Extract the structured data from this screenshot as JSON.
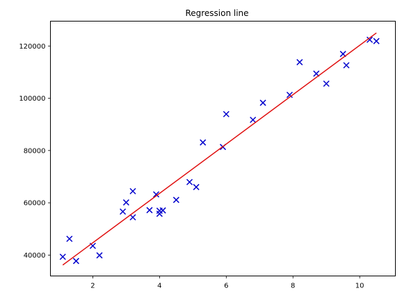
{
  "chart_data": {
    "type": "scatter",
    "title": "Regression line",
    "xlabel": "",
    "ylabel": "",
    "xlim": [
      0.73,
      11.07
    ],
    "ylim": [
      32000,
      129500
    ],
    "xticks": [
      2,
      4,
      6,
      8,
      10
    ],
    "yticks": [
      40000,
      60000,
      80000,
      100000,
      120000
    ],
    "grid": false,
    "series": [
      {
        "kind": "scatter",
        "marker": "x",
        "color": "#0000cc",
        "x": [
          1.1,
          1.3,
          1.5,
          2.0,
          2.2,
          2.9,
          3.0,
          3.2,
          3.2,
          3.7,
          3.9,
          4.0,
          4.0,
          4.1,
          4.5,
          4.9,
          5.1,
          5.3,
          5.9,
          6.0,
          6.8,
          7.1,
          7.9,
          8.2,
          8.7,
          9.0,
          9.5,
          9.6,
          10.3,
          10.5
        ],
        "y": [
          39343,
          46205,
          37731,
          43525,
          39891,
          56642,
          60150,
          54445,
          64445,
          57189,
          63218,
          55794,
          56957,
          57081,
          61111,
          67938,
          66029,
          83088,
          81363,
          93940,
          91738,
          98273,
          101302,
          113812,
          109431,
          105582,
          116969,
          112635,
          122391,
          121872
        ]
      },
      {
        "kind": "line",
        "color": "#e01010",
        "x": [
          1.1,
          10.5
        ],
        "y": [
          36188,
          125000
        ]
      }
    ]
  }
}
